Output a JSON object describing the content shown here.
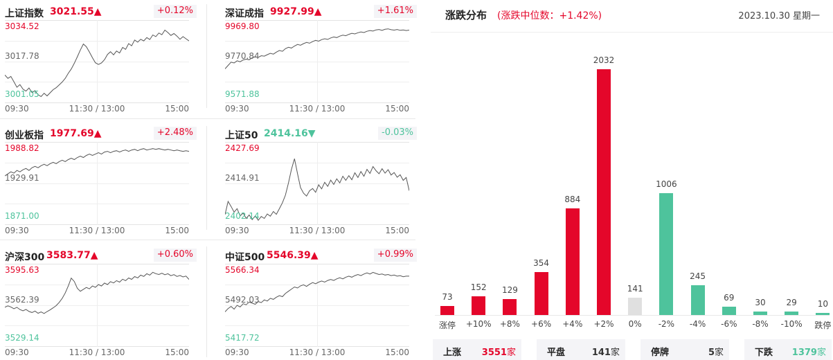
{
  "indices": [
    {
      "name": "上证指数",
      "price": "3021.55▲",
      "change": "+0.12%",
      "dir": "up",
      "high": "3034.52",
      "mid": "3017.78",
      "low": "3001.05",
      "times": [
        "09:30",
        "11:30 / 13:00",
        "15:00"
      ],
      "line": [
        3012.2,
        3010.8,
        3011.6,
        3009.4,
        3007.1,
        3008.2,
        3006.3,
        3005.5,
        3006.8,
        3004.9,
        3005.7,
        3004.0,
        3003.2,
        3004.6,
        3003.5,
        3004.8,
        3006.1,
        3006.9,
        3008.1,
        3009.3,
        3010.8,
        3012.9,
        3014.7,
        3017.1,
        3019.8,
        3022.6,
        3025.1,
        3024.0,
        3021.8,
        3019.4,
        3017.3,
        3016.6,
        3017.2,
        3018.6,
        3020.8,
        3021.9,
        3020.6,
        3022.2,
        3021.4,
        3023.7,
        3022.9,
        3025.3,
        3024.4,
        3026.8,
        3025.9,
        3027.1,
        3026.4,
        3027.8,
        3027.0,
        3028.9,
        3028.2,
        3029.7,
        3029.0,
        3030.9,
        3029.9,
        3028.7,
        3029.5,
        3028.4,
        3027.1,
        3028.2,
        3027.3,
        3026.4
      ],
      "range": [
        3001.05,
        3034.52
      ]
    },
    {
      "name": "深证成指",
      "price": "9927.99▲",
      "change": "+1.61%",
      "dir": "up",
      "high": "9969.80",
      "mid": "9770.84",
      "low": "9571.88",
      "times": [
        "09:30",
        "11:30 / 13:00",
        "15:00"
      ],
      "line": [
        9735,
        9752,
        9768,
        9764,
        9775,
        9770,
        9779,
        9783,
        9780,
        9790,
        9795,
        9792,
        9800,
        9798,
        9805,
        9812,
        9808,
        9818,
        9826,
        9822,
        9835,
        9842,
        9838,
        9848,
        9856,
        9852,
        9860,
        9866,
        9862,
        9870,
        9876,
        9872,
        9880,
        9884,
        9881,
        9888,
        9893,
        9890,
        9897,
        9902,
        9899,
        9906,
        9911,
        9908,
        9914,
        9918,
        9915,
        9921,
        9925,
        9922,
        9928,
        9930,
        9926,
        9931,
        9933,
        9929,
        9927,
        9930,
        9926,
        9928,
        9925,
        9927
      ],
      "range": [
        9571.88,
        9969.8
      ]
    },
    {
      "name": "创业板指",
      "price": "1977.69▲",
      "change": "+2.48%",
      "dir": "up",
      "high": "1988.82",
      "mid": "1929.91",
      "low": "1871.00",
      "times": [
        "09:30",
        "11:30 / 13:00",
        "15:00"
      ],
      "line": [
        1941,
        1944,
        1947,
        1945,
        1949,
        1947,
        1950,
        1952,
        1949,
        1953,
        1955,
        1953,
        1956,
        1958,
        1956,
        1959,
        1961,
        1959,
        1962,
        1964,
        1962,
        1965,
        1967,
        1965,
        1968,
        1970,
        1968,
        1971,
        1973,
        1971,
        1973,
        1975,
        1973,
        1976,
        1977,
        1975,
        1977,
        1978,
        1976,
        1978,
        1979,
        1977,
        1979,
        1980,
        1978,
        1980,
        1981,
        1979,
        1980,
        1981,
        1980,
        1981,
        1980,
        1979,
        1980,
        1979,
        1978,
        1979,
        1978,
        1977,
        1978,
        1977
      ],
      "range": [
        1871.0,
        1988.82
      ]
    },
    {
      "name": "上证50",
      "price": "2414.16▼",
      "change": "-0.03%",
      "dir": "down",
      "high": "2427.69",
      "mid": "2414.91",
      "low": "2402.14",
      "times": [
        "09:30",
        "11:30 / 13:00",
        "15:00"
      ],
      "line": [
        2405.0,
        2409.2,
        2407.6,
        2405.8,
        2406.9,
        2404.6,
        2405.5,
        2403.8,
        2404.9,
        2403.4,
        2404.6,
        2403.2,
        2404.4,
        2403.8,
        2405.2,
        2404.5,
        2406.0,
        2405.1,
        2406.9,
        2408.8,
        2411.2,
        2415.1,
        2419.4,
        2422.8,
        2418.0,
        2413.6,
        2411.8,
        2410.9,
        2412.6,
        2413.3,
        2412.1,
        2414.5,
        2413.2,
        2415.3,
        2414.0,
        2416.0,
        2414.6,
        2416.4,
        2415.1,
        2417.2,
        2415.9,
        2417.4,
        2416.1,
        2418.3,
        2416.8,
        2418.7,
        2417.2,
        2419.4,
        2418.1,
        2420.3,
        2419.0,
        2418.0,
        2419.6,
        2418.2,
        2419.3,
        2417.6,
        2418.4,
        2416.9,
        2417.7,
        2415.9,
        2416.8,
        2412.6
      ],
      "range": [
        2402.14,
        2427.69
      ]
    },
    {
      "name": "沪深300",
      "price": "3583.77▲",
      "change": "+0.60%",
      "dir": "up",
      "high": "3595.63",
      "mid": "3562.39",
      "low": "3529.14",
      "times": [
        "09:30",
        "11:30 / 13:00",
        "15:00"
      ],
      "line": [
        3560.8,
        3561.9,
        3561.0,
        3559.6,
        3560.7,
        3558.9,
        3557.8,
        3559.0,
        3557.3,
        3556.4,
        3557.6,
        3555.8,
        3556.9,
        3555.6,
        3557.2,
        3558.6,
        3560.3,
        3562.1,
        3564.8,
        3568.2,
        3572.6,
        3578.4,
        3584.9,
        3582.1,
        3576.4,
        3574.0,
        3575.6,
        3577.2,
        3576.0,
        3578.4,
        3577.3,
        3579.6,
        3578.4,
        3580.8,
        3579.6,
        3582.0,
        3580.9,
        3582.8,
        3581.6,
        3584.0,
        3582.8,
        3585.0,
        3583.9,
        3586.2,
        3585.1,
        3587.4,
        3586.3,
        3588.5,
        3587.4,
        3589.7,
        3588.6,
        3587.9,
        3588.9,
        3587.7,
        3588.5,
        3586.9,
        3587.8,
        3586.3,
        3587.1,
        3585.9,
        3586.6,
        3583.8
      ],
      "range": [
        3529.14,
        3595.63
      ]
    },
    {
      "name": "中证500",
      "price": "5546.39▲",
      "change": "+0.99%",
      "dir": "up",
      "high": "5566.34",
      "mid": "5492.03",
      "low": "5417.72",
      "times": [
        "09:30",
        "11:30 / 13:00",
        "15:00"
      ],
      "line": [
        5480,
        5486,
        5490,
        5485,
        5492,
        5489,
        5495,
        5493,
        5498,
        5496,
        5494,
        5499,
        5497,
        5502,
        5500,
        5505,
        5503,
        5507,
        5510,
        5508,
        5514,
        5518,
        5522,
        5526,
        5524,
        5528,
        5530,
        5527,
        5531,
        5534,
        5532,
        5535,
        5537,
        5535,
        5538,
        5540,
        5538,
        5541,
        5543,
        5541,
        5544,
        5546,
        5544,
        5547,
        5549,
        5547,
        5550,
        5552,
        5550,
        5553,
        5551,
        5549,
        5550,
        5548,
        5549,
        5547,
        5548,
        5546,
        5547,
        5545,
        5546,
        5546
      ],
      "range": [
        5417.72,
        5566.34
      ]
    }
  ],
  "distribution": {
    "title": "涨跌分布",
    "subtitle": "(涨跌中位数：+1.42%)",
    "date": "2023.10.30 星期一",
    "colors": {
      "up": "#e4062a",
      "flat": "#e0e0e0",
      "down": "#4ec39c"
    },
    "chart_data": {
      "type": "bar",
      "categories": [
        "涨停",
        "+10%",
        "+8%",
        "+6%",
        "+4%",
        "+2%",
        "0%",
        "-2%",
        "-4%",
        "-6%",
        "-8%",
        "-10%",
        "跌停"
      ],
      "values": [
        73,
        152,
        129,
        354,
        884,
        2032,
        141,
        1006,
        245,
        69,
        30,
        29,
        10
      ],
      "value_labels": [
        "73",
        "152",
        "129",
        "354",
        "884",
        "2032",
        "141",
        "1006",
        "245",
        "69",
        "30",
        "29",
        "10"
      ],
      "ylim": [
        0,
        2032
      ]
    },
    "summary": [
      {
        "label": "上涨",
        "value": "3551",
        "unit": "家",
        "color": "#e4062a"
      },
      {
        "label": "平盘",
        "value": "141",
        "unit": "家",
        "color": "#333333"
      },
      {
        "label": "停牌",
        "value": "5",
        "unit": "家",
        "color": "#333333"
      },
      {
        "label": "下跌",
        "value": "1379",
        "unit": "家",
        "color": "#4ec39c"
      }
    ]
  }
}
